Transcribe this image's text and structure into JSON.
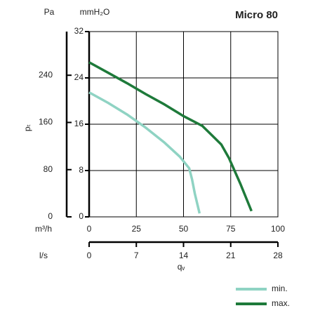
{
  "chart_data": {
    "type": "line",
    "title": "Micro 80",
    "xlabel": "qᵥ",
    "ylabel": "pₜ",
    "xunit": "m³/h",
    "x2unit": "l/s",
    "yunit": "mmH₂O",
    "y2unit": "Pa",
    "xlim": [
      0,
      100
    ],
    "xticks": [
      0,
      25,
      50,
      75,
      100
    ],
    "x2lim": [
      0,
      28
    ],
    "x2ticks": [
      0,
      7,
      14,
      21,
      28
    ],
    "ylim": [
      0,
      32
    ],
    "yticks": [
      0,
      8,
      16,
      24,
      32
    ],
    "y2lim": [
      0,
      314
    ],
    "y2ticks": [
      0,
      80,
      160,
      240
    ],
    "grid": true,
    "legend": "bottom-right",
    "series": [
      {
        "name": "min.",
        "color": "#8fd3c3",
        "x": [
          0,
          10,
          20,
          30,
          40,
          48,
          53,
          54.5,
          56,
          58.5
        ],
        "values": [
          21.5,
          19.7,
          17.7,
          15.4,
          12.8,
          10.4,
          8.4,
          6.5,
          4,
          0.6
        ]
      },
      {
        "name": "max.",
        "color": "#1e7a3a",
        "x": [
          0,
          10,
          20,
          30,
          40,
          50,
          60,
          65,
          70,
          74,
          80,
          86
        ],
        "values": [
          26.7,
          24.9,
          23.1,
          21.2,
          19.4,
          17.4,
          15.7,
          14.1,
          12.5,
          10.2,
          5.8,
          1
        ]
      }
    ]
  }
}
